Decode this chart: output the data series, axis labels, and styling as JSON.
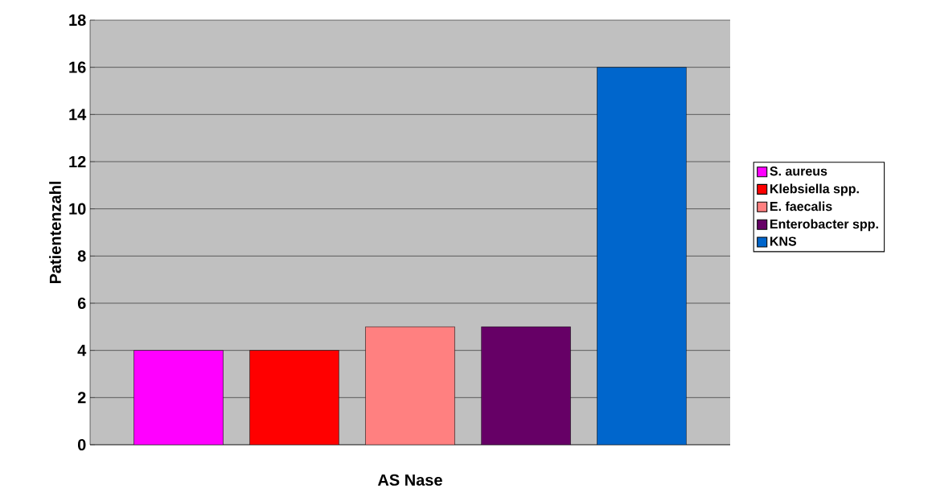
{
  "chart_data": {
    "type": "bar",
    "categories": [
      "AS Nase"
    ],
    "ylabel": "Patientenzahl",
    "ylim": [
      0,
      18
    ],
    "yticks": [
      0,
      2,
      4,
      6,
      8,
      10,
      12,
      14,
      16,
      18
    ],
    "grid": "y",
    "legend": "right",
    "series": [
      {
        "name": "S. aureus",
        "color": "#ff00ff",
        "values": [
          4
        ]
      },
      {
        "name": "Klebsiella spp.",
        "color": "#ff0000",
        "values": [
          4
        ]
      },
      {
        "name": "E. faecalis",
        "color": "#ff8080",
        "values": [
          5
        ]
      },
      {
        "name": "Enterobacter spp.",
        "color": "#660066",
        "values": [
          5
        ]
      },
      {
        "name": "KNS",
        "color": "#0066cc",
        "values": [
          16
        ]
      }
    ]
  }
}
